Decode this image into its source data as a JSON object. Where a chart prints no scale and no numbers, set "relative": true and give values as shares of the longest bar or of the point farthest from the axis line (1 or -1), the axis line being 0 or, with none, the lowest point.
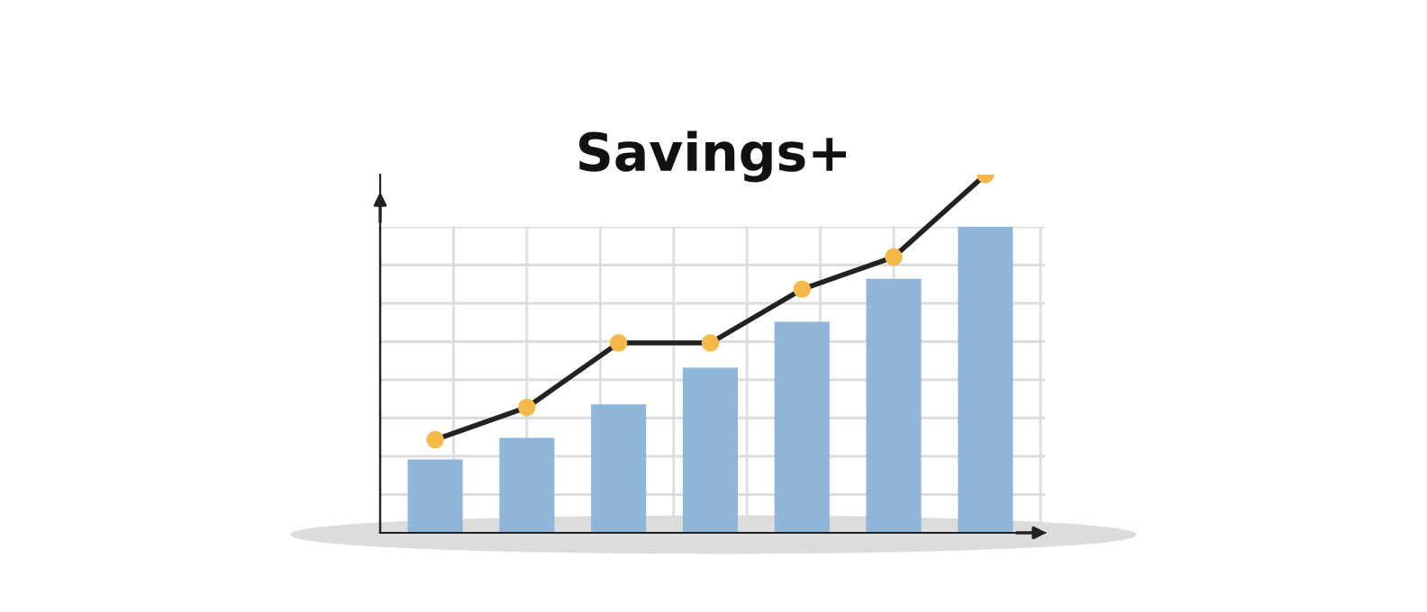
{
  "chart_data": [
    {
      "type": "bar",
      "title": "Savings+",
      "relative": true,
      "grid": true,
      "categories": [
        null,
        null,
        null,
        null,
        null,
        null,
        null
      ],
      "series": [
        {
          "color": "#8fb5d9",
          "values": [
            0.24,
            0.31,
            0.42,
            0.54,
            0.69,
            0.83,
            1.0
          ]
        }
      ]
    },
    {
      "type": "line",
      "relative": true,
      "marker": "circle",
      "categories": [
        null,
        null,
        null,
        null,
        null,
        null,
        null
      ],
      "series": [
        {
          "color": "#222222",
          "values": [
            0.26,
            0.35,
            0.53,
            0.53,
            0.68,
            0.77,
            1.0
          ]
        }
      ]
    }
  ]
}
